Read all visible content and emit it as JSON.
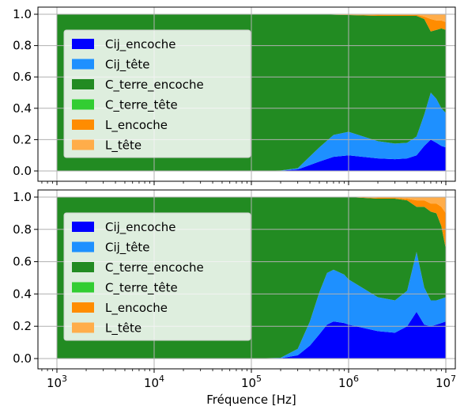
{
  "figure": {
    "xlabel": "Fréquence [Hz]"
  },
  "chart_data": [
    {
      "type": "area",
      "stacked": true,
      "x_scale": "log",
      "xlim": [
        1000,
        10000000
      ],
      "ylim": [
        0,
        1
      ],
      "grid": true,
      "legend_position": "center-left",
      "x_tick_labels": [
        {
          "value": 1000,
          "base": "10",
          "exp": "3"
        },
        {
          "value": 10000,
          "base": "10",
          "exp": "4"
        },
        {
          "value": 100000,
          "base": "10",
          "exp": "5"
        },
        {
          "value": 1000000,
          "base": "10",
          "exp": "6"
        },
        {
          "value": 10000000,
          "base": "10",
          "exp": "7"
        }
      ],
      "y_ticks": [
        0.0,
        0.2,
        0.4,
        0.6,
        0.8,
        1.0
      ],
      "y_tick_labels": [
        "0.0",
        "0.2",
        "0.4",
        "0.6",
        "0.8",
        "1.0"
      ],
      "x": [
        1000,
        100000,
        200000,
        300000,
        500000,
        700000,
        1000000,
        2000000,
        3000000,
        4000000,
        5000000,
        6000000,
        7000000,
        8000000,
        9000000,
        10000000
      ],
      "series": [
        {
          "name": "Cij_encoche",
          "color": "#0000ff",
          "values": [
            0,
            0,
            0.002,
            0.01,
            0.06,
            0.09,
            0.1,
            0.08,
            0.075,
            0.08,
            0.1,
            0.16,
            0.2,
            0.18,
            0.16,
            0.15
          ]
        },
        {
          "name": "Cij_tête",
          "color": "#1e90ff",
          "values": [
            0,
            0,
            0.001,
            0.008,
            0.09,
            0.14,
            0.15,
            0.11,
            0.1,
            0.1,
            0.12,
            0.2,
            0.3,
            0.28,
            0.24,
            0.22
          ]
        },
        {
          "name": "C_terre_encoche",
          "color": "#228b22",
          "values": [
            1,
            1,
            0.997,
            0.982,
            0.85,
            0.767,
            0.745,
            0.8,
            0.815,
            0.81,
            0.77,
            0.61,
            0.39,
            0.44,
            0.51,
            0.53
          ]
        },
        {
          "name": "C_terre_tête",
          "color": "#32cd32",
          "values": [
            0,
            0,
            0,
            0,
            0,
            0,
            0,
            0,
            0,
            0,
            0,
            0,
            0,
            0,
            0,
            0
          ]
        },
        {
          "name": "L_encoche",
          "color": "#ff8c00",
          "values": [
            0,
            0,
            0,
            0,
            0,
            0,
            0.002,
            0.005,
            0.006,
            0.006,
            0.006,
            0.015,
            0.08,
            0.06,
            0.05,
            0.05
          ]
        },
        {
          "name": "L_tête",
          "color": "#ffad4a",
          "values": [
            0,
            0,
            0,
            0,
            0,
            0,
            0.003,
            0.005,
            0.004,
            0.004,
            0.004,
            0.015,
            0.03,
            0.04,
            0.04,
            0.05
          ]
        }
      ]
    },
    {
      "type": "area",
      "stacked": true,
      "x_scale": "log",
      "xlim": [
        1000,
        10000000
      ],
      "ylim": [
        0,
        1
      ],
      "grid": true,
      "legend_position": "center-left",
      "x_tick_labels": [
        {
          "value": 1000,
          "base": "10",
          "exp": "3"
        },
        {
          "value": 10000,
          "base": "10",
          "exp": "4"
        },
        {
          "value": 100000,
          "base": "10",
          "exp": "5"
        },
        {
          "value": 1000000,
          "base": "10",
          "exp": "6"
        },
        {
          "value": 10000000,
          "base": "10",
          "exp": "7"
        }
      ],
      "y_ticks": [
        0.0,
        0.2,
        0.4,
        0.6,
        0.8,
        1.0
      ],
      "y_tick_labels": [
        "0.0",
        "0.2",
        "0.4",
        "0.6",
        "0.8",
        "1.0"
      ],
      "x": [
        1000,
        100000,
        200000,
        300000,
        400000,
        500000,
        600000,
        700000,
        900000,
        1000000,
        2000000,
        3000000,
        4000000,
        5000000,
        6000000,
        7000000,
        8000000,
        9000000,
        10000000
      ],
      "series": [
        {
          "name": "Cij_encoche",
          "color": "#0000ff",
          "values": [
            0,
            0,
            0.002,
            0.02,
            0.08,
            0.15,
            0.21,
            0.23,
            0.22,
            0.21,
            0.17,
            0.16,
            0.2,
            0.29,
            0.21,
            0.2,
            0.21,
            0.22,
            0.23
          ]
        },
        {
          "name": "Cij_tête",
          "color": "#1e90ff",
          "values": [
            0,
            0,
            0.003,
            0.04,
            0.15,
            0.26,
            0.32,
            0.32,
            0.3,
            0.28,
            0.21,
            0.2,
            0.22,
            0.37,
            0.23,
            0.16,
            0.15,
            0.15,
            0.15
          ]
        },
        {
          "name": "C_terre_encoche",
          "color": "#228b22",
          "values": [
            1,
            1,
            0.995,
            0.94,
            0.77,
            0.59,
            0.47,
            0.45,
            0.48,
            0.51,
            0.61,
            0.63,
            0.56,
            0.28,
            0.5,
            0.55,
            0.54,
            0.45,
            0.3
          ]
        },
        {
          "name": "C_terre_tête",
          "color": "#32cd32",
          "values": [
            0,
            0,
            0,
            0,
            0,
            0,
            0,
            0,
            0,
            0,
            0,
            0,
            0,
            0,
            0,
            0,
            0,
            0,
            0
          ]
        },
        {
          "name": "L_encoche",
          "color": "#ff8c00",
          "values": [
            0,
            0,
            0,
            0,
            0,
            0,
            0,
            0,
            0,
            0,
            0.005,
            0.005,
            0.01,
            0.04,
            0.04,
            0.05,
            0.06,
            0.12,
            0.22
          ]
        },
        {
          "name": "L_tête",
          "color": "#ffad4a",
          "values": [
            0,
            0,
            0,
            0,
            0,
            0,
            0,
            0,
            0,
            0,
            0.005,
            0.005,
            0.01,
            0.02,
            0.02,
            0.04,
            0.04,
            0.06,
            0.1
          ]
        }
      ]
    }
  ]
}
